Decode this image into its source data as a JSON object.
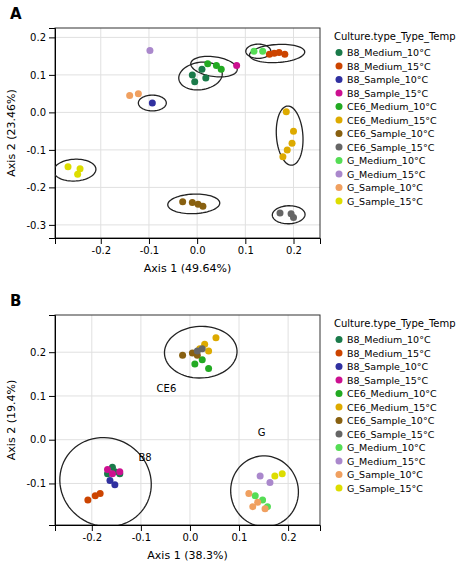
{
  "chart_data": [
    {
      "type": "scatter",
      "title": "A",
      "xlabel": "Axis 1 (49.64%)",
      "ylabel": "Axis 2 (23.46%)",
      "xlim": [
        -0.295,
        0.255
      ],
      "ylim": [
        -0.335,
        0.225
      ],
      "xticks": [
        -0.2,
        -0.1,
        {
          "value": 0.0,
          "label": "0.0"
        },
        0.1,
        0.2
      ],
      "yticks": [
        -0.3,
        -0.2,
        -0.1,
        {
          "value": 0.0,
          "label": "0.0"
        },
        0.1,
        0.2
      ],
      "grid": true,
      "legend": "right",
      "legend_title": "Culture.type_Type_Temp",
      "series": [
        {
          "name": "B8_Medium_10°C",
          "color": "#1a7a4a",
          "x": [
            -0.01,
            0.01,
            -0.005,
            0.018
          ],
          "y": [
            0.1,
            0.115,
            0.082,
            0.092
          ]
        },
        {
          "name": "B8_Medium_15°C",
          "color": "#cc4400",
          "x": [
            0.15,
            0.17,
            0.182,
            0.16
          ],
          "y": [
            0.155,
            0.16,
            0.155,
            0.158
          ]
        },
        {
          "name": "B8_Sample_10°C",
          "color": "#3030a0",
          "x": [
            -0.093
          ],
          "y": [
            0.025
          ]
        },
        {
          "name": "B8_Sample_15°C",
          "color": "#cc1090",
          "x": [
            0.082
          ],
          "y": [
            0.125
          ]
        },
        {
          "name": "CE6_Medium_10°C",
          "color": "#22aa22",
          "x": [
            0.022,
            0.04,
            0.05
          ],
          "y": [
            0.13,
            0.125,
            0.115
          ]
        },
        {
          "name": "CE6_Medium_15°C",
          "color": "#ddaa00",
          "x": [
            0.185,
            0.2,
            0.197,
            0.187,
            0.178
          ],
          "y": [
            0.002,
            -0.05,
            -0.082,
            -0.1,
            -0.118
          ]
        },
        {
          "name": "CE6_Sample_10°C",
          "color": "#886010",
          "x": [
            -0.03,
            -0.01,
            0.002,
            0.012
          ],
          "y": [
            -0.238,
            -0.24,
            -0.245,
            -0.25
          ]
        },
        {
          "name": "CE6_Sample_15°C",
          "color": "#666666",
          "x": [
            0.172,
            0.195,
            0.2
          ],
          "y": [
            -0.268,
            -0.27,
            -0.28
          ]
        },
        {
          "name": "G_Medium_10°C",
          "color": "#55dd55",
          "x": [
            0.118,
            0.136
          ],
          "y": [
            0.163,
            0.163
          ]
        },
        {
          "name": "G_Medium_15°C",
          "color": "#aa88cc",
          "x": [
            -0.098
          ],
          "y": [
            0.165
          ]
        },
        {
          "name": "G_Sample_10°C",
          "color": "#f0a060",
          "x": [
            -0.14,
            -0.122
          ],
          "y": [
            0.045,
            0.05
          ]
        },
        {
          "name": "G_Sample_15°C",
          "color": "#dddd00",
          "x": [
            -0.268,
            -0.243,
            -0.248
          ],
          "y": [
            -0.145,
            -0.15,
            -0.165
          ]
        }
      ],
      "ellipses": [
        {
          "cx": 0.007,
          "cy": 0.097,
          "w": 0.092,
          "h": 0.072,
          "angle": 18
        },
        {
          "cx": 0.166,
          "cy": 0.157,
          "w": 0.115,
          "h": 0.048,
          "angle": 5
        },
        {
          "cx": -0.093,
          "cy": 0.025,
          "w": 0.058,
          "h": 0.042,
          "angle": 0
        },
        {
          "cx": 0.035,
          "cy": 0.122,
          "w": 0.098,
          "h": 0.052,
          "angle": -12
        },
        {
          "cx": 0.127,
          "cy": 0.163,
          "w": 0.052,
          "h": 0.038,
          "angle": 0
        },
        {
          "cx": 0.192,
          "cy": -0.062,
          "w": 0.055,
          "h": 0.158,
          "angle": 3
        },
        {
          "cx": -0.007,
          "cy": -0.244,
          "w": 0.108,
          "h": 0.052,
          "angle": 3
        },
        {
          "cx": 0.19,
          "cy": -0.273,
          "w": 0.068,
          "h": 0.048,
          "angle": 3
        },
        {
          "cx": -0.254,
          "cy": -0.154,
          "w": 0.088,
          "h": 0.058,
          "angle": 5
        }
      ]
    },
    {
      "type": "scatter",
      "title": "B",
      "xlabel": "Axis 1 (38.3%)",
      "ylabel": "Axis 2 (19.4%)",
      "xlim": [
        -0.275,
        0.265
      ],
      "ylim": [
        -0.195,
        0.285
      ],
      "xticks": [
        -0.2,
        -0.1,
        {
          "value": 0.0,
          "label": "0.0"
        },
        0.1,
        0.2
      ],
      "yticks": [
        -0.1,
        {
          "value": 0.0,
          "label": "0.0"
        },
        0.1,
        0.2
      ],
      "grid": true,
      "legend": "right",
      "legend_title": "Culture.type_Type_Temp",
      "series": [
        {
          "name": "B8_Medium_10°C",
          "color": "#1a7a4a",
          "x": [
            -0.158,
            -0.153,
            -0.143,
            -0.168
          ],
          "y": [
            -0.063,
            -0.073,
            -0.078,
            -0.078
          ]
        },
        {
          "name": "B8_Medium_15°C",
          "color": "#cc4400",
          "x": [
            -0.193,
            -0.183,
            -0.208
          ],
          "y": [
            -0.128,
            -0.123,
            -0.138
          ]
        },
        {
          "name": "B8_Sample_10°C",
          "color": "#3030a0",
          "x": [
            -0.163,
            -0.153
          ],
          "y": [
            -0.093,
            -0.103
          ]
        },
        {
          "name": "B8_Sample_15°C",
          "color": "#cc1090",
          "x": [
            -0.158,
            -0.168,
            -0.143
          ],
          "y": [
            -0.078,
            -0.068,
            -0.073
          ]
        },
        {
          "name": "CE6_Medium_10°C",
          "color": "#22aa22",
          "x": [
            0.025,
            0.01,
            0.038
          ],
          "y": [
            0.183,
            0.173,
            0.163
          ]
        },
        {
          "name": "CE6_Medium_15°C",
          "color": "#ddaa00",
          "x": [
            0.03,
            0.053,
            0.038,
            0.02
          ],
          "y": [
            0.218,
            0.233,
            0.203,
            0.208
          ]
        },
        {
          "name": "CE6_Sample_10°C",
          "color": "#886010",
          "x": [
            0.005,
            -0.015,
            0.015
          ],
          "y": [
            0.198,
            0.193,
            0.193
          ]
        },
        {
          "name": "CE6_Sample_15°C",
          "color": "#666666",
          "x": [
            0.025,
            0.015
          ],
          "y": [
            0.208,
            0.203
          ]
        },
        {
          "name": "G_Medium_10°C",
          "color": "#55dd55",
          "x": [
            0.133,
            0.148,
            0.158
          ],
          "y": [
            -0.128,
            -0.138,
            -0.153
          ]
        },
        {
          "name": "G_Medium_15°C",
          "color": "#aa88cc",
          "x": [
            0.143,
            0.163
          ],
          "y": [
            -0.083,
            -0.098
          ]
        },
        {
          "name": "G_Sample_10°C",
          "color": "#f0a060",
          "x": [
            0.12,
            0.138,
            0.153,
            0.128
          ],
          "y": [
            -0.123,
            -0.143,
            -0.158,
            -0.153
          ]
        },
        {
          "name": "G_Sample_15°C",
          "color": "#dddd00",
          "x": [
            0.173,
            0.188
          ],
          "y": [
            -0.083,
            -0.078
          ]
        }
      ],
      "ellipses": [
        {
          "cx": -0.172,
          "cy": -0.097,
          "w": 0.185,
          "h": 0.205,
          "angle": 15,
          "label": "B8",
          "lx": -0.105,
          "ly": -0.048
        },
        {
          "cx": 0.022,
          "cy": 0.2,
          "w": 0.148,
          "h": 0.118,
          "angle": 3,
          "label": "CE6",
          "lx": -0.068,
          "ly": 0.108
        },
        {
          "cx": 0.152,
          "cy": -0.118,
          "w": 0.138,
          "h": 0.162,
          "angle": 3,
          "label": "G",
          "lx": 0.138,
          "ly": 0.008
        }
      ]
    }
  ]
}
